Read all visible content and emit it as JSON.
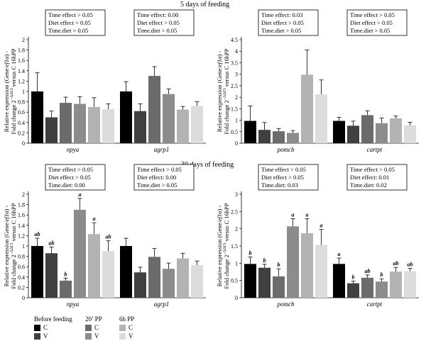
{
  "titles": {
    "top": "5 days of feeding",
    "bottom": "30 days of feeding"
  },
  "legend": {
    "groups": [
      {
        "label": "Before feeding",
        "items": [
          {
            "label": "C",
            "color": "#000000"
          },
          {
            "label": "V",
            "color": "#404040"
          }
        ]
      },
      {
        "label": "20’ PP",
        "items": [
          {
            "label": "C",
            "color": "#6b6b6b"
          },
          {
            "label": "V",
            "color": "#8c8c8c"
          }
        ]
      },
      {
        "label": "6h PP",
        "items": [
          {
            "label": "C",
            "color": "#b3b3b3"
          },
          {
            "label": "V",
            "color": "#dcdcdc"
          }
        ]
      }
    ]
  },
  "series_colors": [
    "#000000",
    "#404040",
    "#6b6b6b",
    "#8c8c8c",
    "#b3b3b3",
    "#dcdcdc"
  ],
  "chart_data": [
    {
      "type": "bar",
      "ylabel_parts": {
        "a": "Relative expression (Gene/",
        "gene": "ef1α",
        "b": ") -",
        "c": "Fold change 2",
        "sup": "−ΔΔCt",
        "d": " versus C 16hPP"
      },
      "ylim": [
        0,
        2
      ],
      "ticks": [
        0,
        0.2,
        0.4,
        0.6,
        0.8,
        1,
        1.2,
        1.4,
        1.6,
        1.8,
        2
      ],
      "tick_labels": [
        "0",
        "0.2",
        "0.4",
        "0.6",
        "0.8",
        "1",
        "1.2",
        "1.4",
        "1.6",
        "1.8",
        "2"
      ],
      "groups": [
        {
          "label": "npya",
          "values": [
            1.0,
            0.5,
            0.78,
            0.76,
            0.7,
            0.66
          ],
          "errors": [
            0.36,
            0.12,
            0.11,
            0.14,
            0.18,
            0.1
          ],
          "letters": [
            "",
            "",
            "",
            "",
            "",
            ""
          ],
          "stats": [
            "Time effect > 0.05",
            "Diet effect > 0.05",
            "Time.diet > 0.05"
          ]
        },
        {
          "label": "agrp1",
          "values": [
            1.0,
            0.62,
            1.3,
            0.95,
            0.65,
            0.72
          ],
          "errors": [
            0.19,
            0.14,
            0.18,
            0.1,
            0.06,
            0.08
          ],
          "letters": [
            "",
            "",
            "",
            "",
            "",
            ""
          ],
          "stats": [
            "Time effect: 0.00",
            "Diet effect > 0.05",
            "Time.diet > 0.05"
          ]
        }
      ]
    },
    {
      "type": "bar",
      "ylabel_parts": {
        "a": "Relative expression (Gene/",
        "gene": "ef1α",
        "b": ") -",
        "c": "Fold change 2",
        "sup": "−ΔΔCt",
        "d": " versus C 16hPP"
      },
      "ylim": [
        0,
        4.5
      ],
      "ticks": [
        0,
        0.5,
        1,
        1.5,
        2,
        2.5,
        3,
        3.5,
        4,
        4.5
      ],
      "tick_labels": [
        "0",
        "0.5",
        "1",
        "1.5",
        "2",
        "2.5",
        "3",
        "3.5",
        "4",
        "4.5"
      ],
      "groups": [
        {
          "label": "pomcb",
          "values": [
            0.97,
            0.58,
            0.52,
            0.45,
            2.98,
            2.12
          ],
          "errors": [
            0.65,
            0.32,
            0.12,
            0.1,
            1.07,
            0.63
          ],
          "letters": [
            "",
            "",
            "",
            "",
            "",
            ""
          ],
          "stats": [
            "Time effect: 0.03",
            "Diet effect > 0.05",
            "Time.diet > 0.05"
          ]
        },
        {
          "label": "cartpt",
          "values": [
            0.97,
            0.76,
            1.22,
            0.87,
            1.08,
            0.78
          ],
          "errors": [
            0.16,
            0.2,
            0.19,
            0.22,
            0.1,
            0.13
          ],
          "letters": [
            "",
            "",
            "",
            "",
            "",
            ""
          ],
          "stats": [
            "Time effect > 0.05",
            "Diet effect > 0.05",
            "Time.diet > 0.05"
          ]
        }
      ]
    },
    {
      "type": "bar",
      "ylabel_parts": {
        "a": "Relative expression (Gene/",
        "gene": "ef1α",
        "b": ") -",
        "c": "Fold change 2",
        "sup": "−ΔΔCt",
        "d": " versus C 16hPP"
      },
      "ylim": [
        0,
        2
      ],
      "ticks": [
        0,
        0.2,
        0.4,
        0.6,
        0.8,
        1,
        1.2,
        1.4,
        1.6,
        1.8,
        2
      ],
      "tick_labels": [
        "0",
        "0.2",
        "0.4",
        "0.6",
        "0.8",
        "1",
        "1.2",
        "1.4",
        "1.6",
        "1.8",
        "2"
      ],
      "groups": [
        {
          "label": "npya",
          "values": [
            1.0,
            0.86,
            0.33,
            1.7,
            1.23,
            0.9
          ],
          "errors": [
            0.15,
            0.12,
            0.05,
            0.22,
            0.22,
            0.2
          ],
          "letters": [
            "ab",
            "ab",
            "b",
            "a",
            "a",
            "ab"
          ],
          "stats": [
            "Time effect > 0.05",
            "Diet effect > 0.05",
            "Time.diet: 0.00"
          ]
        },
        {
          "label": "agrp1",
          "values": [
            1.0,
            0.49,
            0.79,
            0.56,
            0.76,
            0.63
          ],
          "errors": [
            0.15,
            0.1,
            0.16,
            0.11,
            0.1,
            0.08
          ],
          "letters": [
            "",
            "",
            "",
            "",
            "",
            ""
          ],
          "stats": [
            "Time effect > 0.05",
            "Diet effect: 0.00",
            "Time.diet > 0.05"
          ]
        }
      ]
    },
    {
      "type": "bar",
      "ylabel_parts": {
        "a": "Relative expression (Gene/",
        "gene": "ef1α",
        "b": ") -",
        "c": "Fold change 2",
        "sup": "−ΔΔCt",
        "d": " versus C 16hPP"
      },
      "ylim": [
        0,
        3
      ],
      "ticks": [
        0,
        0.5,
        1,
        1.5,
        2,
        2.5,
        3
      ],
      "tick_labels": [
        "0",
        "0.5",
        "1",
        "1.5",
        "2",
        "2.5",
        "3"
      ],
      "groups": [
        {
          "label": "pomcb",
          "values": [
            0.98,
            0.87,
            0.62,
            2.07,
            1.87,
            1.53
          ],
          "errors": [
            0.2,
            0.1,
            0.22,
            0.22,
            0.42,
            0.45
          ],
          "letters": [
            "b",
            "b",
            "b",
            "a",
            "a",
            "a"
          ],
          "stats": [
            "Time effect > 0.05",
            "Diet effect > 0.05",
            "Time.diet: 0.03"
          ]
        },
        {
          "label": "cartpt",
          "values": [
            0.98,
            0.42,
            0.58,
            0.47,
            0.76,
            0.77
          ],
          "errors": [
            0.17,
            0.06,
            0.08,
            0.08,
            0.12,
            0.08
          ],
          "letters": [
            "a",
            "b",
            "ab",
            "b",
            "ab",
            "ab"
          ],
          "stats": [
            "Time effect > 0.05",
            "Diet effect: 0.01",
            "Time.diet: 0.02"
          ]
        }
      ]
    }
  ]
}
